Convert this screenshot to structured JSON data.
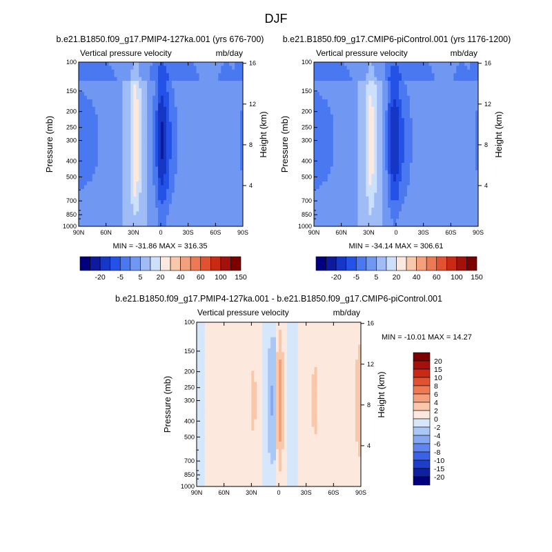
{
  "figure": {
    "title": "DJF"
  },
  "shared": {
    "left_label": "Vertical pressure velocity",
    "right_label": "mb/day",
    "y_left_title": "Pressure (mb)",
    "y_right_title": "Height (km)",
    "y_ticks": [
      "100",
      "150",
      "200",
      "250",
      "300",
      "400",
      "500",
      "700",
      "850",
      "1000"
    ],
    "y_right_ticks": [
      "16",
      "12",
      "8",
      "4"
    ],
    "x_ticks": [
      "90N",
      "60N",
      "30N",
      "0",
      "30S",
      "60S",
      "90S"
    ]
  },
  "colorbar": {
    "abs_labels": [
      "-20",
      "-5",
      "5",
      "20",
      "40",
      "60",
      "100",
      "150"
    ],
    "abs_colors": [
      "#00007e",
      "#0d1a9e",
      "#1636c6",
      "#2452e6",
      "#4a78f0",
      "#7098f2",
      "#9fbcf6",
      "#cde0fb",
      "#fce8dc",
      "#f9c7a9",
      "#f4a07c",
      "#ee7a53",
      "#e15230",
      "#c92a16",
      "#a4100a",
      "#7c0000"
    ],
    "diff_labels": [
      "20",
      "15",
      "10",
      "8",
      "6",
      "4",
      "2",
      "0",
      "-2",
      "-4",
      "-6",
      "-8",
      "-10",
      "-15",
      "-20"
    ],
    "diff_colors": [
      "#7c0000",
      "#a4100a",
      "#c92a16",
      "#e15230",
      "#ee7a53",
      "#f4a07c",
      "#f9c7a9",
      "#fce8dc",
      "#d6e6fb",
      "#aac8f6",
      "#86a8f2",
      "#5f86ee",
      "#3a62e6",
      "#1d3ec8",
      "#0f20a0",
      "#00007e"
    ]
  },
  "panels": [
    {
      "title": "b.e21.B1850.f09_g17.PMIP4-127ka.001 (yrs 676-700)",
      "minmax": "MIN = -31.86  MAX = 316.35"
    },
    {
      "title": "b.e21.B1850.f09_g17.CMIP6-piControl.001 (yrs 1176-1200)",
      "minmax": "MIN = -34.14  MAX = 306.61"
    },
    {
      "title": "b.e21.B1850.f09_g17.PMIP4-127ka.001 - b.e21.B1850.f09_g17.CMIP6-piControl.001",
      "minmax": "MIN = -10.01  MAX =  14.27"
    }
  ],
  "chart_data": [
    {
      "type": "heatmap",
      "title": "b.e21.B1850.f09_g17.PMIP4-127ka.001 (yrs 676-700)",
      "left_string": "Vertical pressure velocity",
      "units": "mb/day",
      "xlabel": "",
      "ylabel": "Pressure (mb)",
      "ylabel_right": "Height (km)",
      "x_ticks": [
        "90N",
        "60N",
        "30N",
        "0",
        "30S",
        "60S",
        "90S"
      ],
      "y_ticks": [
        100,
        150,
        200,
        250,
        300,
        400,
        500,
        700,
        850,
        1000
      ],
      "y_scale": "log",
      "ylim": [
        1000,
        100
      ],
      "min": -31.86,
      "max": 316.35,
      "x_lat": [
        90,
        75,
        60,
        45,
        35,
        28,
        20,
        12,
        5,
        0,
        -5,
        -12,
        -20,
        -30,
        -40,
        -50,
        -60,
        -70,
        -80,
        -90
      ],
      "lat_values": [
        -6,
        -5,
        -3,
        -1,
        2,
        14,
        3,
        -1,
        -8,
        -18,
        -14,
        -7,
        -3,
        -4,
        -2,
        0,
        -1,
        -3,
        -2,
        -5
      ]
    },
    {
      "type": "heatmap",
      "title": "b.e21.B1850.f09_g17.CMIP6-piControl.001 (yrs 1176-1200)",
      "left_string": "Vertical pressure velocity",
      "units": "mb/day",
      "xlabel": "",
      "ylabel": "Pressure (mb)",
      "ylabel_right": "Height (km)",
      "x_ticks": [
        "90N",
        "60N",
        "30N",
        "0",
        "30S",
        "60S",
        "90S"
      ],
      "y_ticks": [
        100,
        150,
        200,
        250,
        300,
        400,
        500,
        700,
        850,
        1000
      ],
      "y_scale": "log",
      "ylim": [
        1000,
        100
      ],
      "min": -34.14,
      "max": 306.61,
      "x_lat": [
        90,
        75,
        60,
        45,
        35,
        28,
        20,
        12,
        5,
        0,
        -5,
        -12,
        -20,
        -30,
        -40,
        -50,
        -60,
        -70,
        -80,
        -90
      ],
      "lat_values": [
        -6,
        -5,
        -3,
        -1,
        2,
        12,
        4,
        -2,
        -14,
        -16,
        -10,
        -6,
        -3,
        -4,
        -2,
        0,
        -1,
        -3,
        -2,
        -5
      ]
    },
    {
      "type": "heatmap",
      "title": "b.e21.B1850.f09_g17.PMIP4-127ka.001 - b.e21.B1850.f09_g17.CMIP6-piControl.001",
      "left_string": "Vertical pressure velocity",
      "units": "mb/day",
      "xlabel": "",
      "ylabel": "Pressure (mb)",
      "ylabel_right": "Height (km)",
      "x_ticks": [
        "90N",
        "60N",
        "30N",
        "0",
        "30S",
        "60S",
        "90S"
      ],
      "y_ticks": [
        100,
        150,
        200,
        250,
        300,
        400,
        500,
        700,
        850,
        1000
      ],
      "y_scale": "log",
      "ylim": [
        1000,
        100
      ],
      "min": -10.01,
      "max": 14.27,
      "x_lat": [
        90,
        75,
        60,
        45,
        35,
        28,
        20,
        12,
        5,
        0,
        -5,
        -12,
        -20,
        -30,
        -40,
        -50,
        -60,
        -70,
        -80,
        -90
      ],
      "lat_values": [
        -1,
        1,
        0,
        1,
        0,
        2,
        1,
        -2,
        -4,
        5,
        2,
        -1,
        0,
        1,
        2,
        0,
        1,
        0,
        1,
        3
      ]
    }
  ]
}
